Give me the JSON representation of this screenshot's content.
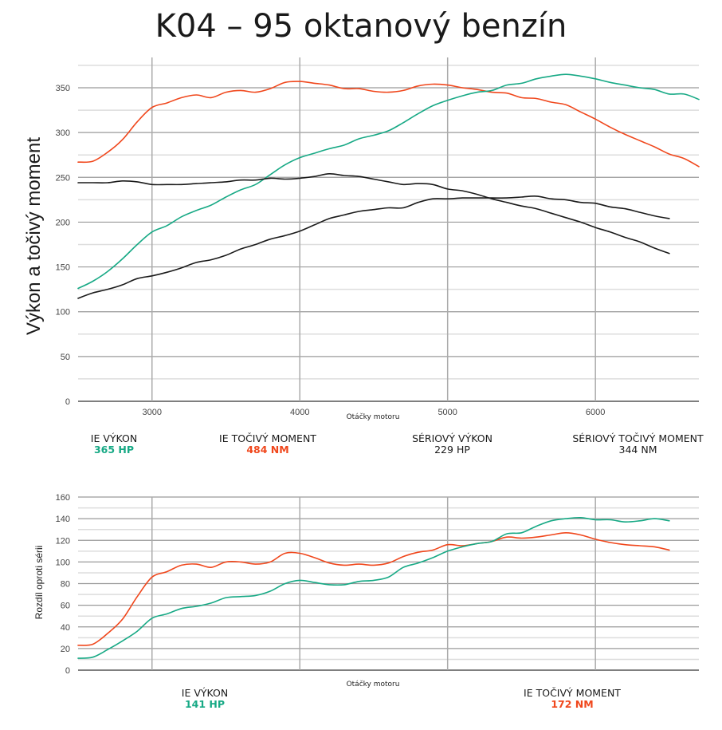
{
  "title": "K04 – 95 oktanový benzín",
  "colors": {
    "ie_power": "#17a985",
    "ie_torque": "#f0471c",
    "stock": "#1a1a1a",
    "grid_major": "#9a9a9a",
    "grid_minor": "#dddddd"
  },
  "chart_data": [
    {
      "type": "line",
      "title": "K04 – 95 oktanový benzín",
      "xlabel": "Otáčky motoru",
      "ylabel": "Výkon a točivý moment",
      "xlim": [
        2500,
        6700
      ],
      "ylim": [
        0,
        375
      ],
      "x_ticks": [
        3000,
        4000,
        5000,
        6000
      ],
      "x_tick_labels": [
        "3000",
        "4000",
        "5000",
        "6000"
      ],
      "y_ticks": [
        0,
        50,
        100,
        150,
        200,
        250,
        300,
        350
      ],
      "y_tick_labels": [
        "0",
        "50",
        "100",
        "150",
        "200",
        "250",
        "300",
        "350"
      ],
      "grid": true,
      "series": [
        {
          "name": "IE točivý moment",
          "color_key": "ie_torque",
          "x": [
            2500,
            2600,
            2700,
            2800,
            2900,
            3000,
            3100,
            3200,
            3300,
            3400,
            3500,
            3600,
            3700,
            3800,
            3900,
            4000,
            4100,
            4200,
            4300,
            4400,
            4500,
            4600,
            4700,
            4800,
            4900,
            5000,
            5100,
            5200,
            5300,
            5400,
            5500,
            5600,
            5700,
            5800,
            5900,
            6000,
            6100,
            6200,
            6300,
            6400,
            6500,
            6600,
            6700
          ],
          "values": [
            267,
            268,
            278,
            292,
            312,
            328,
            333,
            339,
            342,
            339,
            345,
            347,
            345,
            349,
            356,
            357,
            355,
            353,
            349,
            349,
            346,
            345,
            347,
            352,
            354,
            353,
            350,
            348,
            345,
            344,
            339,
            338,
            334,
            331,
            323,
            315,
            306,
            298,
            291,
            284,
            276,
            271,
            262
          ]
        },
        {
          "name": "IE výkon",
          "color_key": "ie_power",
          "x": [
            2500,
            2600,
            2700,
            2800,
            2900,
            3000,
            3100,
            3200,
            3300,
            3400,
            3500,
            3600,
            3700,
            3800,
            3900,
            4000,
            4100,
            4200,
            4300,
            4400,
            4500,
            4600,
            4700,
            4800,
            4900,
            5000,
            5100,
            5200,
            5300,
            5400,
            5500,
            5600,
            5700,
            5800,
            5900,
            6000,
            6100,
            6200,
            6300,
            6400,
            6500,
            6600,
            6700
          ],
          "values": [
            126,
            134,
            145,
            159,
            175,
            189,
            196,
            206,
            213,
            219,
            228,
            236,
            242,
            253,
            264,
            272,
            277,
            282,
            286,
            293,
            297,
            302,
            311,
            321,
            330,
            336,
            341,
            345,
            347,
            353,
            355,
            360,
            363,
            365,
            363,
            360,
            356,
            353,
            350,
            348,
            343,
            343,
            337
          ]
        },
        {
          "name": "Sériový točivý moment",
          "color_key": "stock",
          "x": [
            2500,
            2600,
            2700,
            2800,
            2900,
            3000,
            3100,
            3200,
            3300,
            3400,
            3500,
            3600,
            3700,
            3800,
            3900,
            4000,
            4100,
            4200,
            4300,
            4400,
            4500,
            4600,
            4700,
            4800,
            4900,
            5000,
            5100,
            5200,
            5300,
            5400,
            5500,
            5600,
            5700,
            5800,
            5900,
            6000,
            6100,
            6200,
            6300,
            6400,
            6500
          ],
          "values": [
            244,
            244,
            244,
            246,
            245,
            242,
            242,
            242,
            243,
            244,
            245,
            247,
            247,
            249,
            248,
            249,
            251,
            254,
            252,
            251,
            248,
            245,
            242,
            243,
            242,
            237,
            235,
            231,
            226,
            222,
            218,
            215,
            210,
            205,
            200,
            194,
            189,
            183,
            178,
            171,
            165
          ]
        },
        {
          "name": "Sériový výkon",
          "color_key": "stock",
          "x": [
            2500,
            2600,
            2700,
            2800,
            2900,
            3000,
            3100,
            3200,
            3300,
            3400,
            3500,
            3600,
            3700,
            3800,
            3900,
            4000,
            4100,
            4200,
            4300,
            4400,
            4500,
            4600,
            4700,
            4800,
            4900,
            5000,
            5100,
            5200,
            5300,
            5400,
            5500,
            5600,
            5700,
            5800,
            5900,
            6000,
            6100,
            6200,
            6300,
            6400,
            6500
          ],
          "values": [
            115,
            121,
            125,
            130,
            137,
            140,
            144,
            149,
            155,
            158,
            163,
            170,
            175,
            181,
            185,
            190,
            197,
            204,
            208,
            212,
            214,
            216,
            216,
            222,
            226,
            226,
            227,
            227,
            227,
            227,
            228,
            229,
            226,
            225,
            222,
            221,
            217,
            215,
            211,
            207,
            204
          ]
        }
      ],
      "legend": [
        {
          "label": "IE VÝKON",
          "value": "365 HP",
          "color_key": "ie_power"
        },
        {
          "label": "IE TOČIVÝ MOMENT",
          "value": "484 NM",
          "color_key": "ie_torque"
        },
        {
          "label": "SÉRIOVÝ VÝKON",
          "value": "229 HP",
          "color_key": "stock"
        },
        {
          "label": "SÉRIOVÝ TOČIVÝ MOMENT",
          "value": "344 NM",
          "color_key": "stock"
        }
      ],
      "legend_placement": "bottom"
    },
    {
      "type": "line",
      "title": "",
      "xlabel": "Otáčky motoru",
      "ylabel": "Rozdíl oproti sérii",
      "xlim": [
        2500,
        6700
      ],
      "ylim": [
        0,
        160
      ],
      "x_ticks": [
        3000,
        4000,
        5000,
        6000
      ],
      "x_tick_labels": [],
      "y_ticks": [
        0,
        20,
        40,
        60,
        80,
        100,
        120,
        140,
        160
      ],
      "y_tick_labels": [
        "0",
        "20",
        "40",
        "60",
        "80",
        "100",
        "120",
        "140",
        "160"
      ],
      "grid": true,
      "series": [
        {
          "name": "IE točivý moment (rozdíl)",
          "color_key": "ie_torque",
          "x": [
            2500,
            2600,
            2700,
            2800,
            2900,
            3000,
            3100,
            3200,
            3300,
            3400,
            3500,
            3600,
            3700,
            3800,
            3900,
            4000,
            4100,
            4200,
            4300,
            4400,
            4500,
            4600,
            4700,
            4800,
            4900,
            5000,
            5100,
            5200,
            5300,
            5400,
            5500,
            5600,
            5700,
            5800,
            5900,
            6000,
            6100,
            6200,
            6300,
            6400,
            6500
          ],
          "values": [
            23,
            24,
            34,
            47,
            68,
            86,
            91,
            97,
            98,
            95,
            100,
            100,
            98,
            100,
            108,
            108,
            104,
            99,
            97,
            98,
            97,
            99,
            105,
            109,
            111,
            116,
            115,
            117,
            119,
            123,
            122,
            123,
            125,
            127,
            125,
            121,
            118,
            116,
            115,
            114,
            111
          ]
        },
        {
          "name": "IE výkon (rozdíl)",
          "color_key": "ie_power",
          "x": [
            2500,
            2600,
            2700,
            2800,
            2900,
            3000,
            3100,
            3200,
            3300,
            3400,
            3500,
            3600,
            3700,
            3800,
            3900,
            4000,
            4100,
            4200,
            4300,
            4400,
            4500,
            4600,
            4700,
            4800,
            4900,
            5000,
            5100,
            5200,
            5300,
            5400,
            5500,
            5600,
            5700,
            5800,
            5900,
            6000,
            6100,
            6200,
            6300,
            6400,
            6500
          ],
          "values": [
            11,
            12,
            19,
            27,
            36,
            48,
            52,
            57,
            59,
            62,
            67,
            68,
            69,
            73,
            80,
            83,
            81,
            79,
            79,
            82,
            83,
            86,
            95,
            99,
            104,
            110,
            114,
            117,
            119,
            126,
            127,
            133,
            138,
            140,
            141,
            139,
            139,
            137,
            138,
            140,
            138
          ]
        }
      ],
      "legend": [
        {
          "label": "IE VÝKON",
          "value": "141 HP",
          "color_key": "ie_power"
        },
        {
          "label": "IE TOČIVÝ MOMENT",
          "value": "172 NM",
          "color_key": "ie_torque"
        }
      ],
      "legend_placement": "bottom"
    }
  ]
}
